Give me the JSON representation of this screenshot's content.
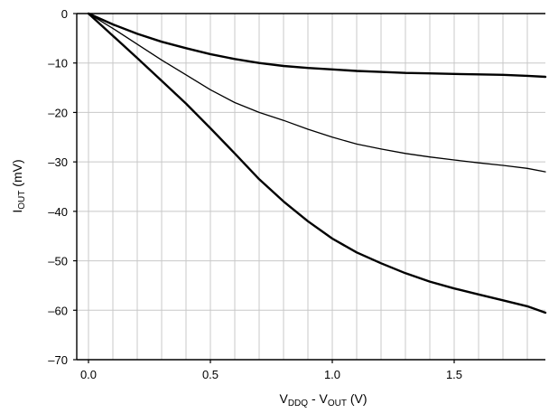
{
  "chart_data": {
    "type": "line",
    "xlabel": {
      "base": "V",
      "sub1": "DDQ",
      "mid": " - V",
      "sub2": "OUT",
      "unit": " (V)"
    },
    "ylabel": {
      "base": "I",
      "sub": "OUT",
      "unit": " (mV)"
    },
    "xlim": [
      -0.05,
      1.9
    ],
    "ylim": [
      -70,
      0
    ],
    "x_ticks": [
      {
        "value": 0.0,
        "label": "0.0"
      },
      {
        "value": 0.5,
        "label": "0.5"
      },
      {
        "value": 1.0,
        "label": "1.0"
      },
      {
        "value": 1.5,
        "label": "1.5"
      }
    ],
    "y_ticks": [
      {
        "value": 0,
        "label": "0"
      },
      {
        "value": -10,
        "label": "–10"
      },
      {
        "value": -20,
        "label": "–20"
      },
      {
        "value": -30,
        "label": "–30"
      },
      {
        "value": -40,
        "label": "–40"
      },
      {
        "value": -50,
        "label": "–50"
      },
      {
        "value": -60,
        "label": "–60"
      },
      {
        "value": -70,
        "label": "–70"
      }
    ],
    "grid": true,
    "series": [
      {
        "stroke_width": 2.4,
        "x": [
          0.0,
          0.1,
          0.2,
          0.3,
          0.4,
          0.5,
          0.6,
          0.7,
          0.8,
          0.9,
          1.0,
          1.1,
          1.2,
          1.3,
          1.4,
          1.5,
          1.6,
          1.7,
          1.8,
          1.9
        ],
        "y": [
          0,
          -2.2,
          -4.1,
          -5.7,
          -7.0,
          -8.2,
          -9.2,
          -10.0,
          -10.6,
          -11.0,
          -11.3,
          -11.6,
          -11.8,
          -12.0,
          -12.1,
          -12.2,
          -12.3,
          -12.4,
          -12.6,
          -12.8
        ]
      },
      {
        "stroke_width": 1.3,
        "x": [
          0.0,
          0.1,
          0.2,
          0.3,
          0.4,
          0.5,
          0.6,
          0.7,
          0.8,
          0.9,
          1.0,
          1.1,
          1.2,
          1.3,
          1.4,
          1.5,
          1.6,
          1.7,
          1.8,
          1.9
        ],
        "y": [
          0,
          -3.0,
          -6.2,
          -9.4,
          -12.4,
          -15.4,
          -18.0,
          -20.0,
          -21.6,
          -23.4,
          -25.0,
          -26.4,
          -27.4,
          -28.3,
          -29.0,
          -29.6,
          -30.2,
          -30.7,
          -31.3,
          -32.0
        ]
      },
      {
        "stroke_width": 2.4,
        "x": [
          0.0,
          0.1,
          0.2,
          0.3,
          0.4,
          0.5,
          0.6,
          0.7,
          0.8,
          0.9,
          1.0,
          1.1,
          1.2,
          1.3,
          1.4,
          1.5,
          1.6,
          1.7,
          1.8,
          1.9
        ],
        "y": [
          0,
          -4.5,
          -9.0,
          -13.6,
          -18.2,
          -23.2,
          -28.3,
          -33.5,
          -38.0,
          -42.0,
          -45.5,
          -48.3,
          -50.5,
          -52.5,
          -54.2,
          -55.6,
          -56.8,
          -58.0,
          -59.2,
          -60.5
        ]
      }
    ]
  }
}
